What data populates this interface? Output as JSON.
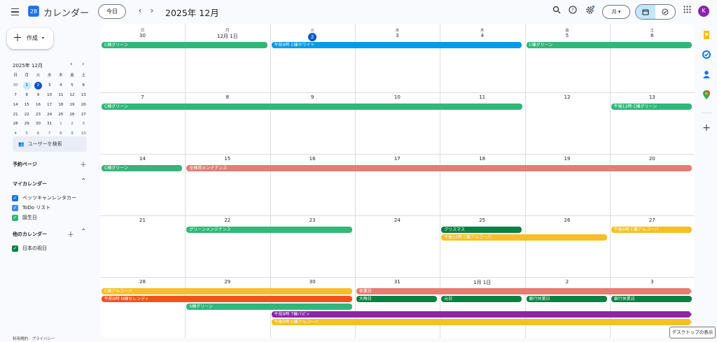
{
  "header": {
    "app_title": "カレンダー",
    "logo_text": "28",
    "today": "今日",
    "prev": "‹",
    "next": "›",
    "period": "2025年 12月",
    "view": "月 ▾",
    "avatar": "K"
  },
  "sidebar": {
    "create": "作成",
    "mini_title": "2025年 12月",
    "mini_weekdays": [
      "日",
      "月",
      "火",
      "水",
      "木",
      "金",
      "土"
    ],
    "mini_days": [
      {
        "d": "30",
        "o": true
      },
      {
        "d": "1",
        "s": true
      },
      {
        "d": "2",
        "t": true
      },
      {
        "d": "3"
      },
      {
        "d": "4"
      },
      {
        "d": "5"
      },
      {
        "d": "6"
      },
      {
        "d": "7"
      },
      {
        "d": "8"
      },
      {
        "d": "9"
      },
      {
        "d": "10"
      },
      {
        "d": "11"
      },
      {
        "d": "12"
      },
      {
        "d": "13"
      },
      {
        "d": "14"
      },
      {
        "d": "15"
      },
      {
        "d": "16"
      },
      {
        "d": "17"
      },
      {
        "d": "18"
      },
      {
        "d": "19"
      },
      {
        "d": "20"
      },
      {
        "d": "21"
      },
      {
        "d": "22"
      },
      {
        "d": "23"
      },
      {
        "d": "24"
      },
      {
        "d": "25"
      },
      {
        "d": "26"
      },
      {
        "d": "27"
      },
      {
        "d": "28"
      },
      {
        "d": "29"
      },
      {
        "d": "30"
      },
      {
        "d": "31"
      },
      {
        "d": "1",
        "o": true
      },
      {
        "d": "2",
        "o": true
      },
      {
        "d": "3",
        "o": true
      },
      {
        "d": "4",
        "o": true
      },
      {
        "d": "5",
        "o": true
      },
      {
        "d": "6",
        "o": true
      },
      {
        "d": "7",
        "o": true
      },
      {
        "d": "8",
        "o": true
      },
      {
        "d": "9",
        "o": true
      },
      {
        "d": "10",
        "o": true
      }
    ],
    "user_search": "ユーザーを検索",
    "booking": "予約ページ",
    "my_cals": "マイカレンダー",
    "my_items": [
      {
        "label": "ベッツキャンレンタカー",
        "color": "#1a73e8"
      },
      {
        "label": "ToDo リスト",
        "color": "#4285f4"
      },
      {
        "label": "誕生日",
        "color": "#33b679"
      }
    ],
    "other_cals": "他のカレンダー",
    "other_items": [
      {
        "label": "日本の祝日",
        "color": "#0b8043"
      }
    ],
    "footer": "利用規約 - プライバシー"
  },
  "calendar": {
    "weekdays": [
      "日",
      "月",
      "火",
      "水",
      "木",
      "金",
      "土"
    ],
    "weeks": [
      [
        "30",
        "12月 1日",
        "2",
        "3",
        "4",
        "5",
        "6"
      ],
      [
        "7",
        "8",
        "9",
        "10",
        "11",
        "12",
        "13"
      ],
      [
        "14",
        "15",
        "16",
        "17",
        "18",
        "19",
        "20"
      ],
      [
        "21",
        "22",
        "23",
        "24",
        "25",
        "26",
        "27"
      ],
      [
        "28",
        "29",
        "30",
        "31",
        "1月 1日",
        "2",
        "3"
      ]
    ],
    "today": {
      "week": 0,
      "day": 2
    },
    "events": [
      {
        "w": 0,
        "r": 0,
        "s": 0,
        "e": 1,
        "label": "C棟グリーン",
        "color": "#33b679"
      },
      {
        "w": 0,
        "r": 0,
        "s": 2,
        "e": 4,
        "label": "午前9時 C棟ホワイト",
        "color": "#039be5"
      },
      {
        "w": 0,
        "r": 0,
        "s": 5,
        "e": 6,
        "label": "C棟グリーン",
        "color": "#33b679"
      },
      {
        "w": 1,
        "r": 0,
        "s": 0,
        "e": 4,
        "label": "C棟グリーン",
        "color": "#33b679"
      },
      {
        "w": 1,
        "r": 0,
        "s": 6,
        "e": 6,
        "label": "午後12時 C棟グリーン",
        "color": "#33b679"
      },
      {
        "w": 2,
        "r": 0,
        "s": 0,
        "e": 0,
        "label": "C棟グリーン",
        "color": "#33b679"
      },
      {
        "w": 2,
        "r": 0,
        "s": 1,
        "e": 6,
        "label": "全棟賃メンテナンス",
        "color": "#e67c73"
      },
      {
        "w": 3,
        "r": 0,
        "s": 1,
        "e": 2,
        "label": "グリーンメンテナンス",
        "color": "#33b679"
      },
      {
        "w": 3,
        "r": 0,
        "s": 4,
        "e": 4,
        "label": "クリスマス",
        "color": "#0b8043"
      },
      {
        "w": 3,
        "r": 0,
        "s": 6,
        "e": 6,
        "label": "午後6時 C棟アルコーバ",
        "color": "#f6bf26"
      },
      {
        "w": 3,
        "r": 1,
        "s": 4,
        "e": 5,
        "label": "午後12時 C棟アルコーバ",
        "color": "#f6bf26"
      },
      {
        "w": 4,
        "r": 0,
        "s": 0,
        "e": 2,
        "label": "C棟アルコーバ",
        "color": "#f6bf26"
      },
      {
        "w": 4,
        "r": 0,
        "s": 3,
        "e": 6,
        "label": "休業日",
        "color": "#e67c73",
        "arrow": true
      },
      {
        "w": 4,
        "r": 1,
        "s": 0,
        "e": 2,
        "label": "午前9時 N棟セレンディ",
        "color": "#f4511e"
      },
      {
        "w": 4,
        "r": 1,
        "s": 3,
        "e": 3,
        "label": "大晦日",
        "color": "#0b8043"
      },
      {
        "w": 4,
        "r": 1,
        "s": 4,
        "e": 4,
        "label": "元日",
        "color": "#0b8043"
      },
      {
        "w": 4,
        "r": 1,
        "s": 5,
        "e": 5,
        "label": "銀行休業日",
        "color": "#0b8043"
      },
      {
        "w": 4,
        "r": 1,
        "s": 6,
        "e": 6,
        "label": "銀行休業日",
        "color": "#0b8043"
      },
      {
        "w": 4,
        "r": 2,
        "s": 1,
        "e": 2,
        "label": "S棟グリーン",
        "color": "#33b679"
      },
      {
        "w": 4,
        "r": 3,
        "s": 2,
        "e": 6,
        "label": "午前9時 T棟パピィ",
        "color": "#8e24aa",
        "arrow": true
      },
      {
        "w": 4,
        "r": 4,
        "s": 2,
        "e": 6,
        "label": "午後5時 C棟アルコーバ",
        "color": "#f6bf26",
        "arrow": true
      }
    ]
  },
  "tooltip": "デスクトップの表示"
}
